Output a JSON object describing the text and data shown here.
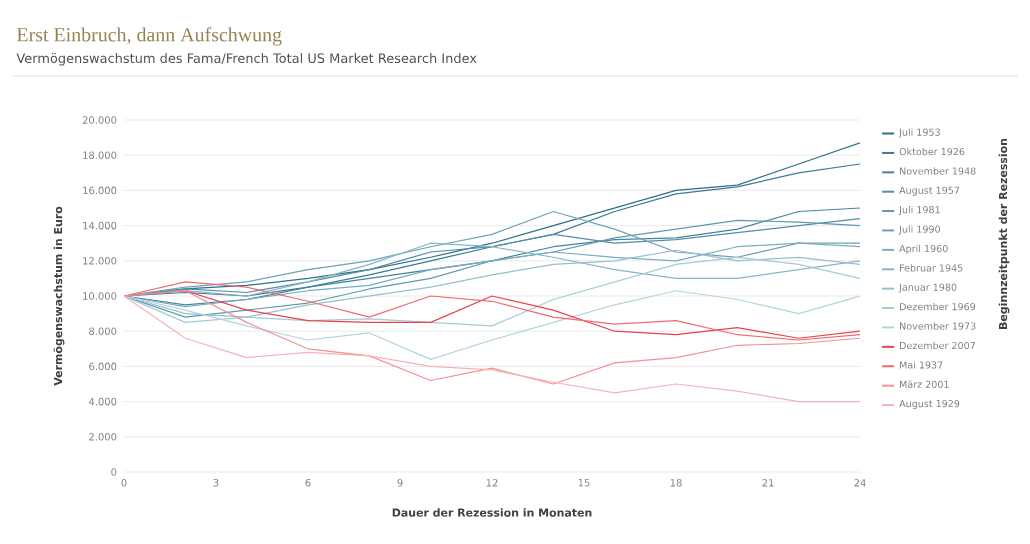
{
  "chart_data": {
    "type": "line",
    "title": "Erst Einbruch, dann Aufschwung",
    "subtitle": "Vermögenswachstum des Fama/French Total US Market Research Index",
    "xlabel": "Dauer der Rezession in Monaten",
    "ylabel": "Vermögenswachstum in Euro",
    "legend_title": "Beginnzeitpunkt der Rezession",
    "x": [
      0,
      2,
      4,
      6,
      8,
      10,
      12,
      14,
      16,
      18,
      20,
      22,
      24
    ],
    "series": [
      {
        "name": "Juli 1953",
        "color": "#2f6f8c",
        "values": [
          10000,
          10400,
          10600,
          11000,
          11500,
          12200,
          13000,
          14000,
          15000,
          16000,
          16300,
          17500,
          18700
        ]
      },
      {
        "name": "Oktober 1926",
        "color": "#3a7a96",
        "values": [
          10000,
          10200,
          10000,
          10500,
          11200,
          12000,
          12800,
          13500,
          14800,
          15800,
          16200,
          17000,
          17500
        ]
      },
      {
        "name": "November 1948",
        "color": "#45849f",
        "values": [
          10000,
          9500,
          9800,
          10500,
          11000,
          11500,
          12000,
          12800,
          13200,
          13300,
          13800,
          14800,
          15000
        ]
      },
      {
        "name": "August 1957",
        "color": "#528ea8",
        "values": [
          10000,
          10400,
          10200,
          10800,
          11500,
          12500,
          12800,
          13500,
          13000,
          13200,
          13600,
          14000,
          14400
        ]
      },
      {
        "name": "Juli 1981",
        "color": "#5f98b0",
        "values": [
          10000,
          8800,
          9200,
          9600,
          10400,
          11000,
          12000,
          12500,
          13300,
          13800,
          14300,
          14200,
          14000
        ]
      },
      {
        "name": "Juli 1990",
        "color": "#6ca2b8",
        "values": [
          10000,
          10500,
          10800,
          11500,
          12000,
          12800,
          13500,
          14800,
          13800,
          12500,
          12200,
          13000,
          13000
        ]
      },
      {
        "name": "April 1960",
        "color": "#7aacbf",
        "values": [
          10000,
          9400,
          9800,
          10300,
          10600,
          11500,
          12000,
          12500,
          12200,
          12000,
          12800,
          13000,
          12800
        ]
      },
      {
        "name": "Februar 1945",
        "color": "#88b6c6",
        "values": [
          10000,
          10300,
          10000,
          10800,
          11800,
          13000,
          12800,
          12200,
          11500,
          11000,
          11000,
          11500,
          12000
        ]
      },
      {
        "name": "Januar 1980",
        "color": "#96c0cd",
        "values": [
          10000,
          9000,
          8800,
          9500,
          10000,
          10500,
          11200,
          11800,
          12000,
          12600,
          12000,
          12200,
          11800
        ]
      },
      {
        "name": "Dezember 1969",
        "color": "#a4cad4",
        "values": [
          10000,
          8500,
          8800,
          8600,
          8700,
          8500,
          8300,
          9800,
          10800,
          11800,
          12200,
          11800,
          11000
        ]
      },
      {
        "name": "November 1973",
        "color": "#b2d4db",
        "values": [
          10000,
          9200,
          8300,
          7500,
          7900,
          6400,
          7500,
          8500,
          9500,
          10300,
          9800,
          9000,
          10000
        ]
      },
      {
        "name": "Dezember 2007",
        "color": "#e8424c",
        "values": [
          10000,
          10300,
          9200,
          8600,
          8500,
          8500,
          10000,
          9200,
          8000,
          7800,
          8200,
          7600,
          8000
        ]
      },
      {
        "name": "Mai 1937",
        "color": "#ee6a70",
        "values": [
          10000,
          10800,
          10500,
          9700,
          8800,
          10000,
          9700,
          8800,
          8400,
          8600,
          7800,
          7500,
          7800
        ]
      },
      {
        "name": "März 2001",
        "color": "#f29195",
        "values": [
          10000,
          10300,
          8500,
          7000,
          6600,
          5200,
          5900,
          5000,
          6200,
          6500,
          7200,
          7300,
          7600
        ]
      },
      {
        "name": "August 1929",
        "color": "#f6b3b5",
        "values": [
          10000,
          7600,
          6500,
          6800,
          6600,
          6000,
          5800,
          5100,
          4500,
          5000,
          4600,
          4000,
          4000
        ]
      }
    ],
    "xlim": [
      0,
      24
    ],
    "xticks": [
      0,
      3,
      6,
      9,
      12,
      15,
      18,
      21,
      24
    ],
    "ylim": [
      0,
      20000
    ],
    "yticks": [
      {
        "value": 0,
        "label": "0"
      },
      {
        "value": 2000,
        "label": "2.000"
      },
      {
        "value": 4000,
        "label": "4.000"
      },
      {
        "value": 6000,
        "label": "6.000"
      },
      {
        "value": 8000,
        "label": "8.000"
      },
      {
        "value": 10000,
        "label": "10.000"
      },
      {
        "value": 12000,
        "label": "12.000"
      },
      {
        "value": 14000,
        "label": "14.000"
      },
      {
        "value": 16000,
        "label": "16.000"
      },
      {
        "value": 18000,
        "label": "18.000"
      },
      {
        "value": 20000,
        "label": "20.000"
      }
    ],
    "grid": "y",
    "legend": "right",
    "marker": "none",
    "line_style": "solid"
  }
}
